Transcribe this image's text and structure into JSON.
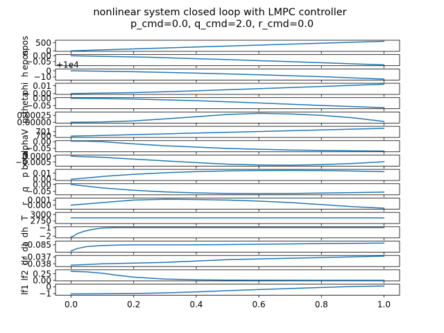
{
  "figure": {
    "title_line1": "nonlinear system closed loop with LMPC controller",
    "title_line2": "p_cmd=0.0, q_cmd=2.0, r_cmd=0.0",
    "line_color": "#1f77b4"
  },
  "chart_data": {
    "type": "line",
    "title": "nonlinear system closed loop with LMPC controller\np_cmd=0.0, q_cmd=2.0, r_cmd=0.0",
    "shared_x": true,
    "xlim": [
      -0.05,
      1.05
    ],
    "x_ticks": [
      "0.0",
      "0.2",
      "0.4",
      "0.6",
      "0.8",
      "1.0"
    ],
    "x_tick_values": [
      0.0,
      0.2,
      0.4,
      0.6,
      0.8,
      1.0
    ],
    "panels": [
      {
        "ylabel": "npos",
        "ylim": [
          -30,
          660
        ],
        "yticks": [
          0,
          500
        ],
        "ytick_labels": [
          "0",
          "500"
        ],
        "x": [
          0,
          1
        ],
        "y": [
          0,
          595
        ]
      },
      {
        "ylabel": "epos",
        "ylim": [
          -0.085,
          0.01
        ],
        "yticks": [
          0.0,
          -0.05
        ],
        "ytick_labels": [
          "0.00",
          "−0.05"
        ],
        "x": [
          0,
          0.25,
          0.5,
          0.75,
          1
        ],
        "y": [
          0,
          -0.013,
          -0.033,
          -0.055,
          -0.078
        ]
      },
      {
        "ylabel": "h",
        "ylim": [
          -15,
          3
        ],
        "yticks": [
          0,
          -10
        ],
        "ytick_labels": [
          "0",
          "−10"
        ],
        "offset_text": "+1e4",
        "x": [
          0,
          0.2,
          0.4,
          0.6,
          0.8,
          1
        ],
        "y": [
          0,
          -1.5,
          -3.8,
          -6.5,
          -9.5,
          -13.5
        ]
      },
      {
        "ylabel": "phi",
        "ylim": [
          -0.001,
          0.013
        ],
        "yticks": [
          0.01,
          0.0
        ],
        "ytick_labels": [
          "0.01",
          "0.00"
        ],
        "x": [
          0,
          0.2,
          0.4,
          0.6,
          0.8,
          1
        ],
        "y": [
          0,
          0.0012,
          0.0035,
          0.0062,
          0.009,
          0.0118
        ]
      },
      {
        "ylabel": "theta",
        "ylim": [
          -0.072,
          0.005
        ],
        "yticks": [
          0.0,
          -0.05
        ],
        "ytick_labels": [
          "0.00",
          "−0.05"
        ],
        "x": [
          0,
          0.2,
          0.4,
          0.6,
          0.8,
          1
        ],
        "y": [
          0,
          -0.005,
          -0.016,
          -0.032,
          -0.049,
          -0.065
        ]
      },
      {
        "ylabel": "psi",
        "ylim": [
          -3e-05,
          0.00037
        ],
        "yticks": [
          0.00025,
          0.0
        ],
        "ytick_labels": [
          "0.00025",
          "0.00000"
        ],
        "x": [
          0,
          0.1,
          0.2,
          0.3,
          0.4,
          0.5,
          0.6,
          0.7,
          0.8,
          0.9,
          1
        ],
        "y": [
          0,
          1e-05,
          5e-05,
          0.00012,
          0.0002,
          0.00028,
          0.00032,
          0.0003,
          0.00025,
          0.00016,
          3e-05
        ]
      },
      {
        "ylabel": "V",
        "ylim": [
          699.6,
          702.3
        ],
        "yticks": [
          701,
          700
        ],
        "ytick_labels": [
          "701",
          "700"
        ],
        "x": [
          0,
          1
        ],
        "y": [
          699.9,
          701.8
        ]
      },
      {
        "ylabel": "alpha",
        "ylim": [
          -0.075,
          0.008
        ],
        "yticks": [
          0.0,
          -0.05
        ],
        "ytick_labels": [
          "0.00",
          "−0.05"
        ],
        "x": [
          0,
          0.05,
          0.1,
          0.15,
          0.2,
          0.3,
          0.5,
          0.7,
          0.9,
          1
        ],
        "y": [
          0.004,
          0.004,
          0.0,
          -0.008,
          -0.016,
          -0.03,
          -0.05,
          -0.062,
          -0.068,
          -0.07
        ]
      },
      {
        "ylabel": "beta",
        "ylim": [
          -0.00085,
          0.0001
        ],
        "yticks": [
          0.0,
          -0.0005
        ],
        "ytick_labels": [
          "0.0000",
          "−0.0005"
        ],
        "x": [
          0,
          0.1,
          0.2,
          0.3,
          0.4,
          0.5,
          0.6,
          0.7,
          0.8,
          0.9,
          1
        ],
        "y": [
          0,
          -0.0001,
          -0.00025,
          -0.0004,
          -0.00055,
          -0.00068,
          -0.00075,
          -0.00077,
          -0.00072,
          -0.00062,
          -0.00048
        ]
      },
      {
        "ylabel": "p",
        "ylim": [
          -0.002,
          0.016
        ],
        "yticks": [
          0.01,
          0.0
        ],
        "ytick_labels": [
          "0.01",
          "0.00"
        ],
        "x": [
          0,
          0.05,
          0.1,
          0.2,
          0.3,
          0.4,
          0.5,
          0.6,
          0.7,
          0.8,
          0.9,
          1
        ],
        "y": [
          0,
          0.002,
          0.0045,
          0.008,
          0.0105,
          0.0123,
          0.0135,
          0.0142,
          0.0143,
          0.014,
          0.0133,
          0.0122
        ]
      },
      {
        "ylabel": "q",
        "ylim": [
          -0.075,
          0.006
        ],
        "yticks": [
          0.0,
          -0.05
        ],
        "ytick_labels": [
          "0.00",
          "−0.05"
        ],
        "x": [
          0,
          0.05,
          0.1,
          0.2,
          0.3,
          0.4,
          0.5,
          0.6,
          0.7,
          0.8,
          0.9,
          1
        ],
        "y": [
          0,
          -0.012,
          -0.025,
          -0.042,
          -0.054,
          -0.061,
          -0.065,
          -0.066,
          -0.065,
          -0.062,
          -0.059,
          -0.055
        ]
      },
      {
        "ylabel": "r",
        "ylim": [
          -0.0008,
          0.0014
        ],
        "yticks": [
          0.001,
          0.0
        ],
        "ytick_labels": [
          "0.001",
          "0.000"
        ],
        "x": [
          0,
          0.1,
          0.2,
          0.3,
          0.4,
          0.5,
          0.6,
          0.7,
          0.8,
          0.9,
          1
        ],
        "y": [
          0,
          0.0005,
          0.001,
          0.00115,
          0.0011,
          0.001,
          0.0008,
          0.0005,
          0.0001,
          -0.0003,
          -0.0006
        ]
      },
      {
        "ylabel": "T",
        "ylim": [
          2650,
          3080
        ],
        "yticks": [
          3000,
          2750
        ],
        "ytick_labels": [
          "3000",
          "2750"
        ],
        "x": [
          0,
          1
        ],
        "y": [
          2870,
          2870
        ]
      },
      {
        "ylabel": "dh",
        "ylim": [
          -2.2,
          -0.9
        ],
        "yticks": [
          -1,
          -2
        ],
        "ytick_labels": [
          "−1",
          "−2"
        ],
        "x": [
          0,
          0.01,
          0.02,
          0.04,
          0.06,
          0.08,
          0.1,
          0.12,
          0.15,
          0.2,
          0.3,
          0.5,
          1
        ],
        "y": [
          -2.1,
          -1.95,
          -1.7,
          -1.45,
          -1.28,
          -1.15,
          -1.06,
          -1.02,
          -1.0,
          -1.0,
          -1.0,
          -1.0,
          -1.0
        ]
      },
      {
        "ylabel": "da",
        "ylim": [
          -0.088,
          -0.0835
        ],
        "yticks": [
          -0.085
        ],
        "ytick_labels": [
          "−0.085"
        ],
        "x": [
          0,
          0.02,
          0.05,
          0.1,
          0.15,
          0.2,
          0.4,
          0.6,
          0.8,
          1
        ],
        "y": [
          -0.0875,
          -0.0865,
          -0.0857,
          -0.0853,
          -0.0851,
          -0.085,
          -0.085,
          -0.0848,
          -0.0845,
          -0.0843
        ]
      },
      {
        "ylabel": "dr",
        "ylim": [
          -0.0384,
          -0.0368
        ],
        "yticks": [
          -0.037,
          -0.038
        ],
        "ytick_labels": [
          "−0.037",
          "−0.038"
        ],
        "x": [
          0,
          0.05,
          0.1,
          0.2,
          0.3,
          0.4,
          0.5,
          0.6,
          0.7,
          0.8,
          0.9,
          1
        ],
        "y": [
          -0.0382,
          -0.0381,
          -0.038,
          -0.0379,
          -0.0378,
          -0.0376,
          -0.0374,
          -0.0373,
          -0.0372,
          -0.0371,
          -0.037,
          -0.0369
        ]
      },
      {
        "ylabel": "lf2",
        "ylim": [
          -0.02,
          0.4
        ],
        "yticks": [
          0.25,
          0.0
        ],
        "ytick_labels": [
          "0.25",
          "0.00"
        ],
        "x": [
          0,
          0.05,
          0.1,
          0.15,
          0.2,
          0.3,
          0.4,
          0.5,
          0.6,
          0.8,
          1
        ],
        "y": [
          0.34,
          0.32,
          0.27,
          0.19,
          0.12,
          0.05,
          0.02,
          0.01,
          0.005,
          0.003,
          0.003
        ]
      },
      {
        "ylabel": "lf1",
        "ylim": [
          -1.25,
          0.4
        ],
        "yticks": [
          0,
          -1
        ],
        "ytick_labels": [
          "0",
          "−1"
        ],
        "x": [
          0,
          0.2,
          0.3,
          0.4,
          0.5,
          0.6,
          0.7,
          0.8,
          0.9,
          1
        ],
        "y": [
          -1.05,
          -1.0,
          -0.9,
          -0.75,
          -0.58,
          -0.4,
          -0.25,
          -0.1,
          0.05,
          0.12
        ]
      }
    ]
  }
}
